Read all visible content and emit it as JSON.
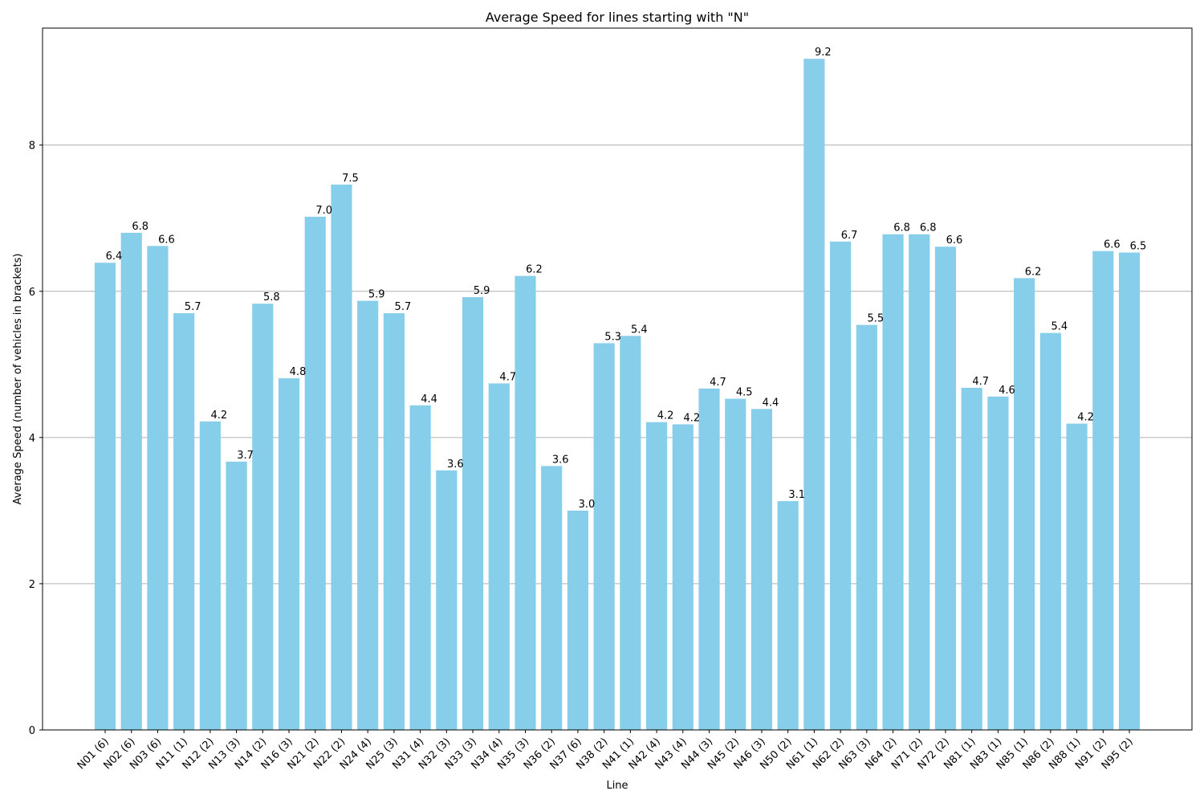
{
  "chart_data": {
    "type": "bar",
    "title": "Average Speed for lines starting with \"N\"",
    "xlabel": "Line",
    "ylabel": "Average Speed (number of vehicles in brackets)",
    "ylim": [
      0,
      9.6
    ],
    "yticks": [
      0,
      2,
      4,
      6,
      8
    ],
    "grid": "horizontal",
    "bar_color": "#87ceeb",
    "categories": [
      "N01 (6)",
      "N02 (6)",
      "N03 (6)",
      "N11 (1)",
      "N12 (2)",
      "N13 (3)",
      "N14 (2)",
      "N16 (3)",
      "N21 (2)",
      "N22 (2)",
      "N24 (4)",
      "N25 (3)",
      "N31 (4)",
      "N32 (3)",
      "N33 (3)",
      "N34 (4)",
      "N35 (3)",
      "N36 (2)",
      "N37 (6)",
      "N38 (2)",
      "N41 (1)",
      "N42 (4)",
      "N43 (4)",
      "N44 (3)",
      "N45 (2)",
      "N46 (3)",
      "N50 (2)",
      "N61 (1)",
      "N62 (2)",
      "N63 (3)",
      "N64 (2)",
      "N71 (2)",
      "N72 (2)",
      "N81 (1)",
      "N83 (1)",
      "N85 (1)",
      "N86 (2)",
      "N88 (1)",
      "N91 (2)",
      "N95 (2)"
    ],
    "values": [
      6.39,
      6.8,
      6.62,
      5.7,
      4.22,
      3.67,
      5.83,
      4.81,
      7.02,
      7.46,
      5.87,
      5.7,
      4.44,
      3.55,
      5.92,
      4.74,
      6.21,
      3.61,
      3.0,
      5.29,
      5.39,
      4.21,
      4.18,
      4.67,
      4.53,
      4.39,
      3.13,
      9.18,
      6.68,
      5.54,
      6.78,
      6.78,
      6.61,
      4.68,
      4.56,
      6.18,
      5.43,
      4.19,
      6.55,
      6.53
    ],
    "data_labels": [
      "6.4",
      "6.8",
      "6.6",
      "5.7",
      "4.2",
      "3.7",
      "5.8",
      "4.8",
      "7.0",
      "7.5",
      "5.9",
      "5.7",
      "4.4",
      "3.6",
      "5.9",
      "4.7",
      "6.2",
      "3.6",
      "3.0",
      "5.3",
      "5.4",
      "4.2",
      "4.2",
      "4.7",
      "4.5",
      "4.4",
      "3.1",
      "9.2",
      "6.7",
      "5.5",
      "6.8",
      "6.8",
      "6.6",
      "4.7",
      "4.6",
      "6.2",
      "5.4",
      "4.2",
      "6.6",
      "6.5"
    ]
  }
}
